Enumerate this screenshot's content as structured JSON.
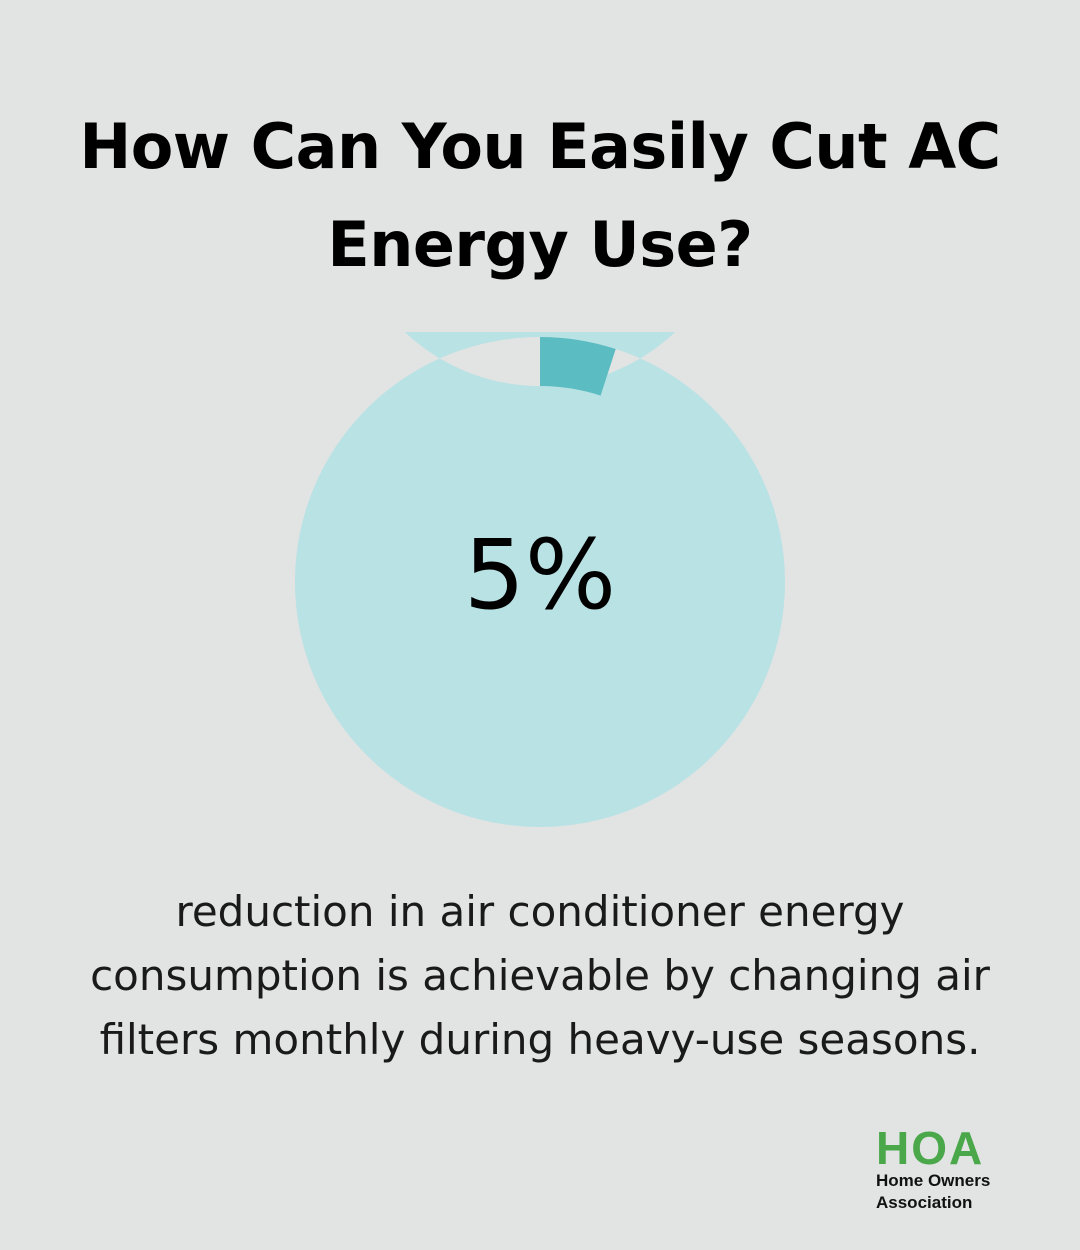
{
  "title": "How Can You Easily Cut AC Energy Use?",
  "chart_data": {
    "type": "pie",
    "variant": "donut",
    "value": 5,
    "unit": "%",
    "value_label": "5%",
    "max": 100,
    "colors": {
      "filled": "#5bbcc1",
      "track": "#b9e2e4"
    }
  },
  "description": "reduction in air conditioner energy consumption is achievable by changing air filters monthly during heavy-use seasons.",
  "logo": {
    "mark": "HOA",
    "line1": "Home Owners",
    "line2": "Association",
    "color": "#4aa84a"
  },
  "colors": {
    "background": "#e2e3e3"
  }
}
